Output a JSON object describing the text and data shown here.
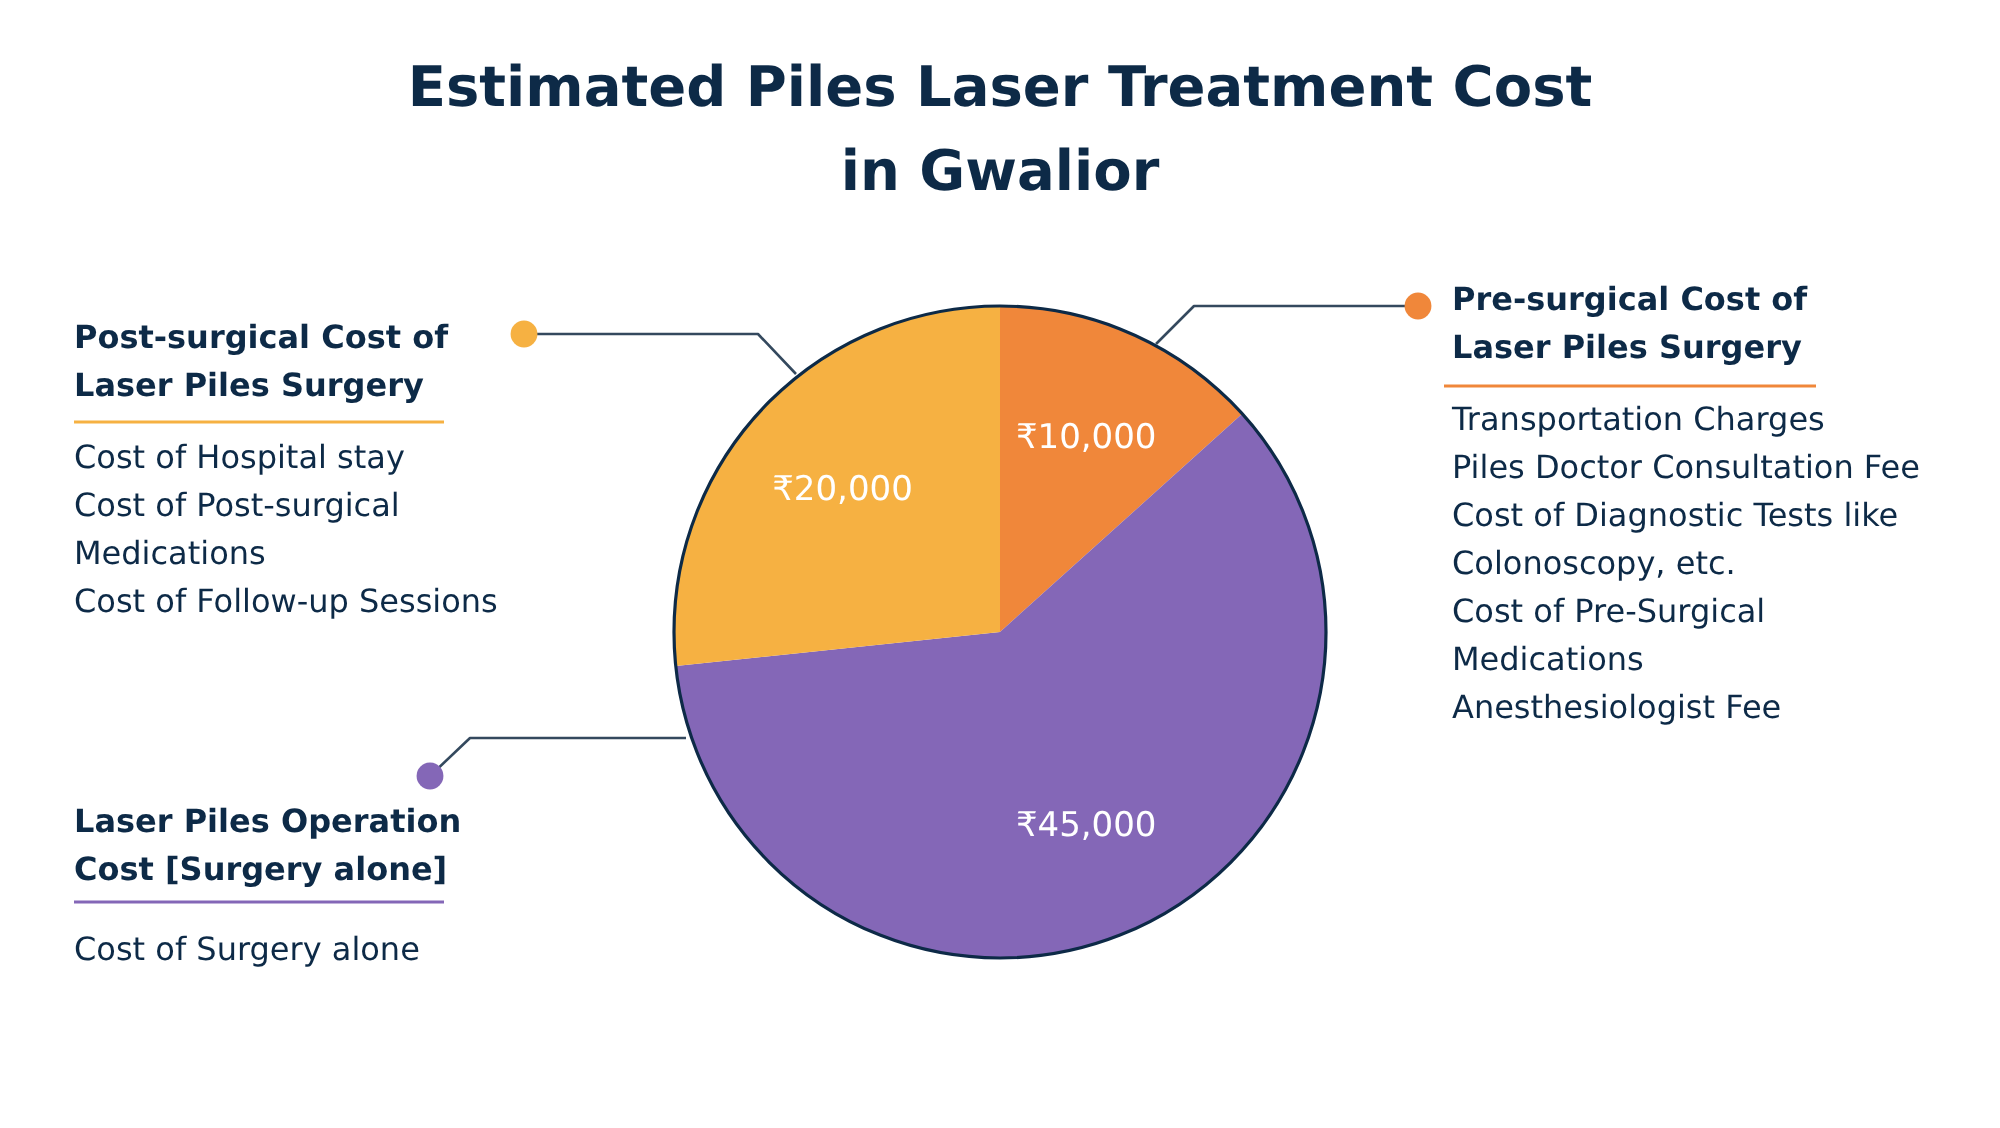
{
  "chart_data": {
    "type": "pie",
    "title": "Estimated Piles Laser Treatment Cost in Gwalior",
    "categories": [
      "Pre-surgical Cost of Laser Piles Surgery",
      "Laser Piles Operation Cost [Surgery alone]",
      "Post-surgical Cost of Laser Piles Surgery"
    ],
    "values": [
      10000,
      45000,
      20000
    ],
    "colors": [
      "#f0873a",
      "#8467b7",
      "#f6b142"
    ],
    "value_labels": [
      "₹10,000",
      "₹45,000",
      "₹20,000"
    ],
    "annotations": [
      "Transportation Charges",
      "Piles Doctor Consultation Fee",
      "Cost of Diagnostic Tests like Colonoscopy, etc.",
      "Cost of Pre-Surgical Medications",
      "Anesthesiologist Fee",
      "Cost of Surgery alone",
      "Cost of Hospital stay",
      "Cost of Post-surgical Medications",
      "Cost of Follow-up Sessions"
    ]
  }
}
